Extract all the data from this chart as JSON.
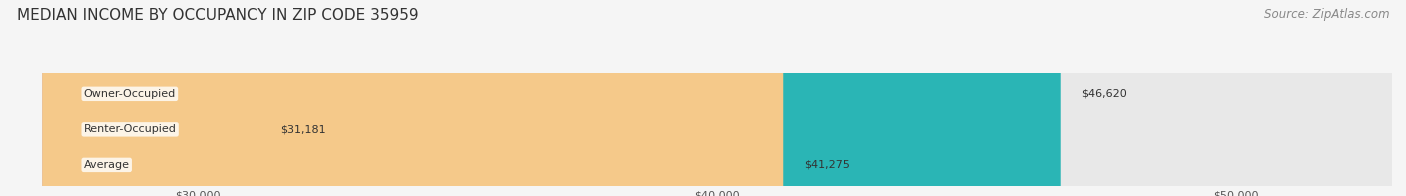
{
  "title": "MEDIAN INCOME BY OCCUPANCY IN ZIP CODE 35959",
  "source": "Source: ZipAtlas.com",
  "categories": [
    "Owner-Occupied",
    "Renter-Occupied",
    "Average"
  ],
  "values": [
    46620,
    31181,
    41275
  ],
  "bar_colors": [
    "#2ab5b5",
    "#c4a8d0",
    "#f5c98a"
  ],
  "label_texts": [
    "$46,620",
    "$31,181",
    "$41,275"
  ],
  "x_ticks": [
    30000,
    40000,
    50000
  ],
  "x_tick_labels": [
    "$30,000",
    "$40,000",
    "$50,000"
  ],
  "x_min": 27000,
  "x_max": 53000,
  "background_color": "#f5f5f5",
  "bar_background_color": "#e8e8e8",
  "title_fontsize": 11,
  "source_fontsize": 8.5,
  "bar_label_fontsize": 8,
  "category_label_fontsize": 8,
  "tick_fontsize": 8
}
